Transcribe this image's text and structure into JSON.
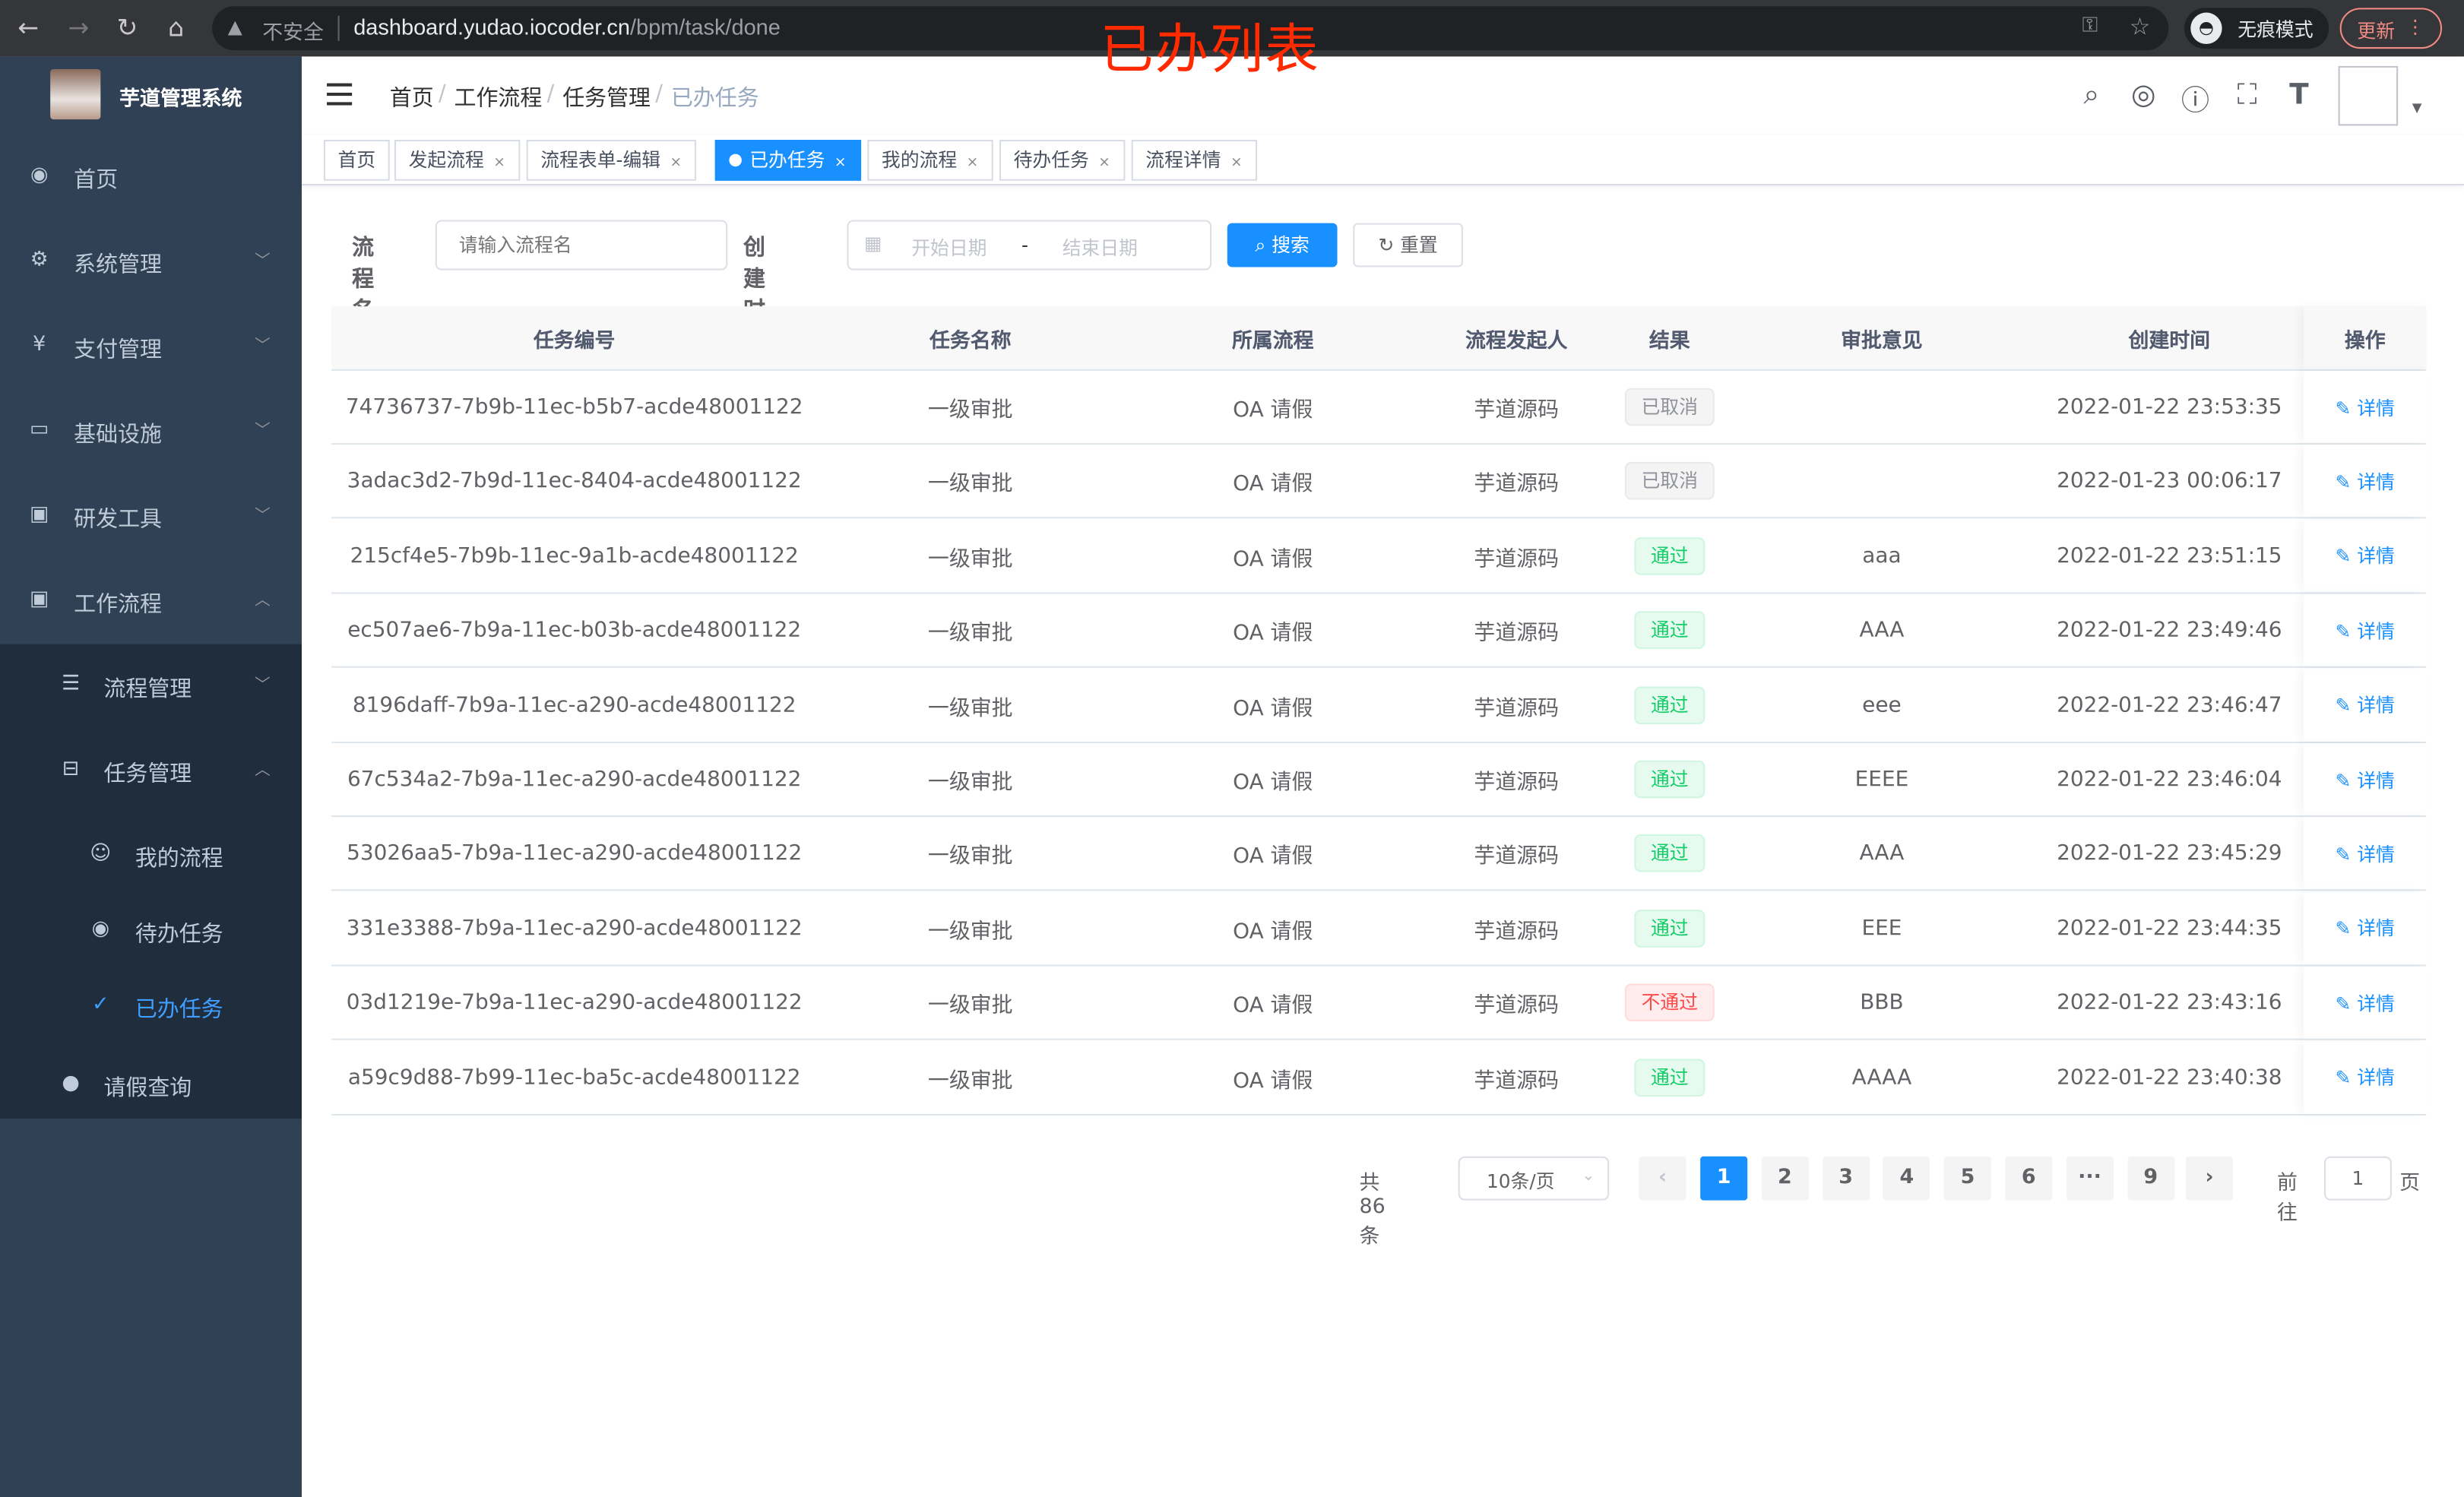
{
  "browser": {
    "insecure": "不安全",
    "url_host": "dashboard.yudao.iocoder.cn",
    "url_path": "/bpm/task/done",
    "incognito": "无痕模式",
    "update": "更新"
  },
  "overlay_title": "已办列表",
  "sidebar": {
    "brand": "芋道管理系统",
    "items": [
      {
        "label": "首页",
        "icon": "dashboard-icon"
      },
      {
        "label": "系统管理",
        "icon": "gear-icon"
      },
      {
        "label": "支付管理",
        "icon": "yen-icon"
      },
      {
        "label": "基础设施",
        "icon": "monitor-icon"
      },
      {
        "label": "研发工具",
        "icon": "toolbox-icon"
      },
      {
        "label": "工作流程",
        "icon": "toolbox-icon"
      }
    ],
    "sub": [
      {
        "label": "流程管理",
        "icon": "list-icon"
      },
      {
        "label": "任务管理",
        "icon": "tree-icon"
      }
    ],
    "task_sub": [
      {
        "label": "我的流程",
        "icon": "people-icon"
      },
      {
        "label": "待办任务",
        "icon": "eye-icon"
      },
      {
        "label": "已办任务",
        "icon": "done-icon",
        "active": true
      }
    ],
    "leave": {
      "label": "请假查询",
      "icon": "user-icon"
    }
  },
  "breadcrumb": [
    "首页",
    "工作流程",
    "任务管理",
    "已办任务"
  ],
  "tags": [
    {
      "label": "首页"
    },
    {
      "label": "发起流程"
    },
    {
      "label": "流程表单-编辑"
    },
    {
      "label": "已办任务",
      "active": true
    },
    {
      "label": "我的流程"
    },
    {
      "label": "待办任务"
    },
    {
      "label": "流程详情"
    }
  ],
  "search": {
    "name_label": "流程名",
    "name_placeholder": "请输入流程名",
    "time_label": "创建时间",
    "start_placeholder": "开始日期",
    "sep": "-",
    "end_placeholder": "结束日期",
    "search_btn": "搜索",
    "reset_btn": "重置"
  },
  "table": {
    "headers": [
      "任务编号",
      "任务名称",
      "所属流程",
      "流程发起人",
      "结果",
      "审批意见",
      "创建时间",
      "操作"
    ],
    "rows": [
      {
        "id": "74736737-7b9b-11ec-b5b7-acde48001122",
        "name": "一级审批",
        "process": "OA 请假",
        "starter": "芋道源码",
        "result": "已取消",
        "status": "cancel",
        "comment": "",
        "time": "2022-01-22 23:53:35",
        "op": "详情"
      },
      {
        "id": "3adac3d2-7b9d-11ec-8404-acde48001122",
        "name": "一级审批",
        "process": "OA 请假",
        "starter": "芋道源码",
        "result": "已取消",
        "status": "cancel",
        "comment": "",
        "time": "2022-01-23 00:06:17",
        "op": "详情"
      },
      {
        "id": "215cf4e5-7b9b-11ec-9a1b-acde48001122",
        "name": "一级审批",
        "process": "OA 请假",
        "starter": "芋道源码",
        "result": "通过",
        "status": "pass",
        "comment": "aaa",
        "time": "2022-01-22 23:51:15",
        "op": "详情"
      },
      {
        "id": "ec507ae6-7b9a-11ec-b03b-acde48001122",
        "name": "一级审批",
        "process": "OA 请假",
        "starter": "芋道源码",
        "result": "通过",
        "status": "pass",
        "comment": "AAA",
        "time": "2022-01-22 23:49:46",
        "op": "详情"
      },
      {
        "id": "8196daff-7b9a-11ec-a290-acde48001122",
        "name": "一级审批",
        "process": "OA 请假",
        "starter": "芋道源码",
        "result": "通过",
        "status": "pass",
        "comment": "eee",
        "time": "2022-01-22 23:46:47",
        "op": "详情"
      },
      {
        "id": "67c534a2-7b9a-11ec-a290-acde48001122",
        "name": "一级审批",
        "process": "OA 请假",
        "starter": "芋道源码",
        "result": "通过",
        "status": "pass",
        "comment": "EEEE",
        "time": "2022-01-22 23:46:04",
        "op": "详情"
      },
      {
        "id": "53026aa5-7b9a-11ec-a290-acde48001122",
        "name": "一级审批",
        "process": "OA 请假",
        "starter": "芋道源码",
        "result": "通过",
        "status": "pass",
        "comment": "AAA",
        "time": "2022-01-22 23:45:29",
        "op": "详情"
      },
      {
        "id": "331e3388-7b9a-11ec-a290-acde48001122",
        "name": "一级审批",
        "process": "OA 请假",
        "starter": "芋道源码",
        "result": "通过",
        "status": "pass",
        "comment": "EEE",
        "time": "2022-01-22 23:44:35",
        "op": "详情"
      },
      {
        "id": "03d1219e-7b9a-11ec-a290-acde48001122",
        "name": "一级审批",
        "process": "OA 请假",
        "starter": "芋道源码",
        "result": "不通过",
        "status": "reject",
        "comment": "BBB",
        "time": "2022-01-22 23:43:16",
        "op": "详情"
      },
      {
        "id": "a59c9d88-7b99-11ec-ba5c-acde48001122",
        "name": "一级审批",
        "process": "OA 请假",
        "starter": "芋道源码",
        "result": "通过",
        "status": "pass",
        "comment": "AAAA",
        "time": "2022-01-22 23:40:38",
        "op": "详情"
      }
    ]
  },
  "pagination": {
    "total": "共 86 条",
    "page_size": "10条/页",
    "pages": [
      "1",
      "2",
      "3",
      "4",
      "5",
      "6",
      "···",
      "9"
    ],
    "current": "1",
    "goto_label": "前往",
    "goto_value": "1",
    "goto_suffix": "页"
  },
  "colors": {
    "sidebar": "#304156",
    "submenu": "#1f2d3d",
    "primary": "#1890ff",
    "active_menu": "#409eff",
    "pass": "#13ce66",
    "reject": "#ff4949",
    "overlay": "#ff2a00"
  }
}
